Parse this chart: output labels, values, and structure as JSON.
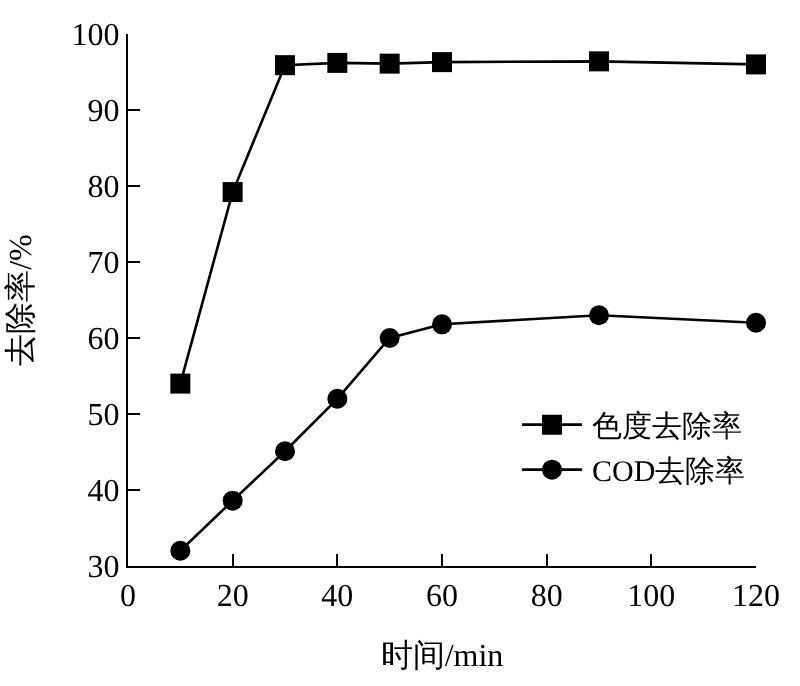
{
  "chart_data": {
    "type": "line",
    "xlabel": "时间/min",
    "ylabel": "去除率/%",
    "x": [
      10,
      20,
      30,
      40,
      50,
      60,
      90,
      120
    ],
    "series": [
      {
        "name": "色度去除率",
        "color": "#000000",
        "marker": "square",
        "values": [
          54,
          79.2,
          95.9,
          96.2,
          96.1,
          96.3,
          96.4,
          96.0
        ]
      },
      {
        "name": "COD去除率",
        "color": "#000000",
        "marker": "circle",
        "values": [
          32,
          38.6,
          45.1,
          52,
          60,
          61.8,
          63,
          62
        ]
      }
    ],
    "xlim": [
      0,
      120
    ],
    "xticks": [
      0,
      20,
      40,
      60,
      80,
      100,
      120
    ],
    "ylim": [
      30,
      100
    ],
    "yticks": [
      30,
      40,
      50,
      60,
      70,
      80,
      90,
      100
    ],
    "legend": "bottom right",
    "line_style": "solid"
  }
}
